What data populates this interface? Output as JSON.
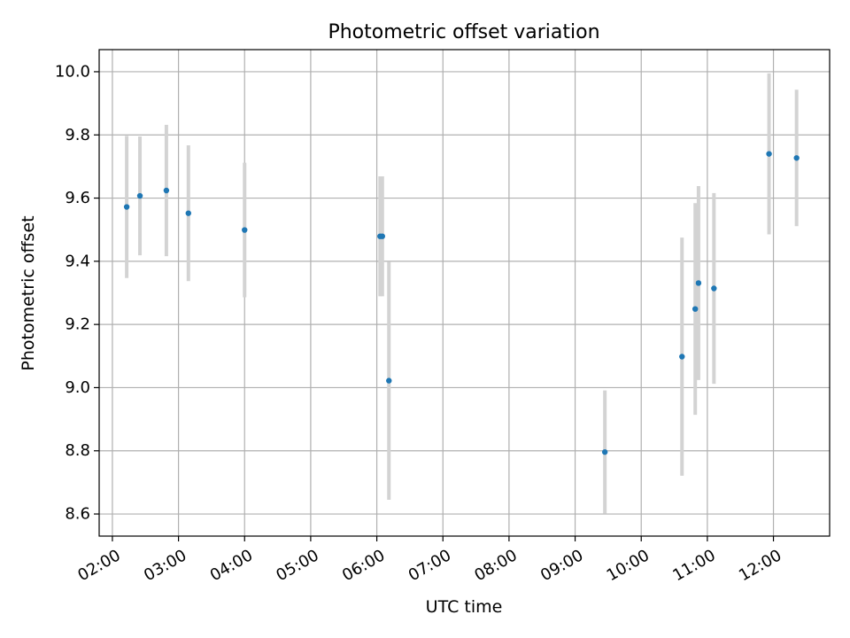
{
  "chart_data": {
    "type": "scatter",
    "title": "Photometric offset variation",
    "xlabel": "UTC time",
    "ylabel": "Photometric offset",
    "x_tick_labels": [
      "02:00",
      "03:00",
      "04:00",
      "05:00",
      "06:00",
      "07:00",
      "08:00",
      "09:00",
      "10:00",
      "11:00",
      "12:00"
    ],
    "y_tick_labels": [
      "8.6",
      "8.8",
      "9.0",
      "9.2",
      "9.4",
      "9.6",
      "9.8",
      "10.0"
    ],
    "xlim": [
      "01:48",
      "12:51"
    ],
    "ylim": [
      8.53,
      10.07
    ],
    "grid": true,
    "marker_color": "#1f77b4",
    "errorbar_color": "#d3d3d3",
    "series": [
      {
        "points": [
          {
            "x": "02:13",
            "y": 9.572,
            "err": 0.225
          },
          {
            "x": "02:25",
            "y": 9.607,
            "err": 0.188
          },
          {
            "x": "02:49",
            "y": 9.624,
            "err": 0.208
          },
          {
            "x": "03:09",
            "y": 9.552,
            "err": 0.215
          },
          {
            "x": "04:00",
            "y": 9.499,
            "err": 0.213
          },
          {
            "x": "06:03",
            "y": 9.479,
            "err": 0.19
          },
          {
            "x": "06:05",
            "y": 9.479,
            "err": 0.19
          },
          {
            "x": "06:11",
            "y": 9.022,
            "err": 0.377
          },
          {
            "x": "09:27",
            "y": 8.796,
            "err": 0.195
          },
          {
            "x": "10:37",
            "y": 9.098,
            "err": 0.377
          },
          {
            "x": "10:49",
            "y": 9.249,
            "err": 0.335
          },
          {
            "x": "10:52",
            "y": 9.331,
            "err": 0.307
          },
          {
            "x": "11:06",
            "y": 9.314,
            "err": 0.302
          },
          {
            "x": "11:56",
            "y": 9.74,
            "err": 0.255
          },
          {
            "x": "12:21",
            "y": 9.727,
            "err": 0.216
          }
        ]
      }
    ]
  }
}
